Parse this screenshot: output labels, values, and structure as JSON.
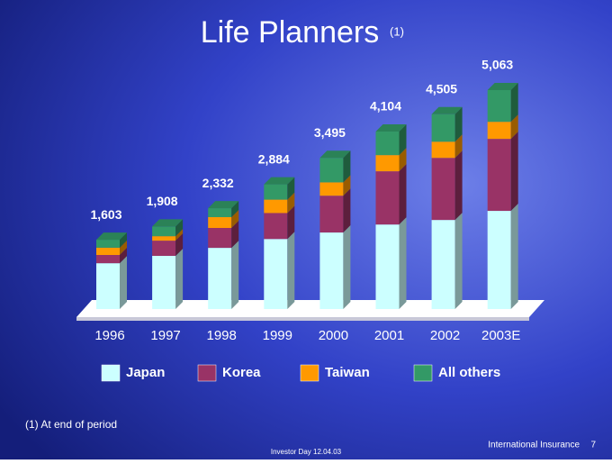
{
  "chart_data": {
    "type": "bar",
    "stacked": true,
    "title": "Life Planners",
    "title_note": "(1)",
    "categories": [
      "1996",
      "1997",
      "1998",
      "1999",
      "2000",
      "2001",
      "2002",
      "2003E"
    ],
    "series": [
      {
        "name": "Japan",
        "color": "#ccffff",
        "values": [
          1060,
          1230,
          1415,
          1620,
          1770,
          1955,
          2060,
          2270
        ]
      },
      {
        "name": "Korea",
        "color": "#993366",
        "values": [
          190,
          350,
          460,
          600,
          850,
          1230,
          1435,
          1665
        ]
      },
      {
        "name": "Taiwan",
        "color": "#ff9900",
        "values": [
          170,
          105,
          250,
          310,
          310,
          375,
          375,
          395
        ]
      },
      {
        "name": "All others",
        "color": "#339966",
        "values": [
          183,
          223,
          207,
          354,
          565,
          544,
          635,
          733
        ]
      }
    ],
    "totals": [
      1603,
      1908,
      2332,
      2884,
      3495,
      4104,
      4505,
      5063
    ],
    "total_labels": [
      "1,603",
      "1,908",
      "2,332",
      "2,884",
      "3,495",
      "4,104",
      "4,505",
      "5,063"
    ]
  },
  "footnote": "(1) At end of period",
  "footer_center": "Investor Day 12.04.03",
  "footer_right": "International Insurance",
  "page_number": "7"
}
